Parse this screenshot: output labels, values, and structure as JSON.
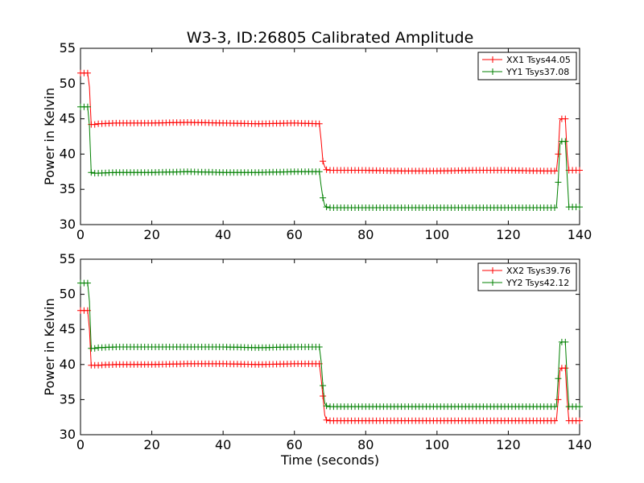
{
  "figure": {
    "title": "W3-3, ID:26805 Calibrated Amplitude"
  },
  "chart_data": [
    {
      "type": "line",
      "xlabel": "",
      "ylabel": "Power in Kelvin",
      "xlim": [
        0,
        140
      ],
      "ylim": [
        30,
        55
      ],
      "xticks": [
        0,
        20,
        40,
        60,
        80,
        100,
        120,
        140
      ],
      "yticks": [
        30,
        35,
        40,
        45,
        50,
        55
      ],
      "grid": false,
      "legend_position": "top-right",
      "series": [
        {
          "name": "XX1 Tsys44.05",
          "color": "#ff0000",
          "marker": "+",
          "x": [
            0,
            1,
            2,
            2.5,
            3,
            4,
            5,
            10,
            20,
            30,
            40,
            50,
            60,
            67,
            67.5,
            68,
            68.5,
            69,
            70,
            80,
            90,
            100,
            110,
            120,
            130,
            133.5,
            134,
            134.5,
            135,
            136,
            136.5,
            137,
            140
          ],
          "y": [
            51.5,
            51.5,
            51.5,
            49.5,
            44.2,
            44.2,
            44.3,
            44.4,
            44.4,
            44.5,
            44.4,
            44.3,
            44.4,
            44.3,
            42,
            39,
            38.2,
            37.8,
            37.7,
            37.7,
            37.6,
            37.6,
            37.7,
            37.7,
            37.6,
            37.6,
            40,
            44.8,
            45,
            45,
            40,
            37.7,
            37.7
          ]
        },
        {
          "name": "YY1 Tsys37.08",
          "color": "#008000",
          "marker": "+",
          "x": [
            0,
            1,
            2,
            2.5,
            3,
            4,
            5,
            10,
            20,
            30,
            40,
            50,
            60,
            67,
            67.5,
            68,
            68.5,
            69,
            70,
            80,
            90,
            100,
            110,
            120,
            130,
            133.5,
            134,
            134.5,
            135,
            136,
            136.5,
            137,
            140
          ],
          "y": [
            46.7,
            46.7,
            46.7,
            44,
            37.4,
            37.3,
            37.3,
            37.4,
            37.4,
            37.5,
            37.4,
            37.4,
            37.5,
            37.5,
            35.5,
            33.8,
            32.7,
            32.5,
            32.4,
            32.4,
            32.4,
            32.4,
            32.4,
            32.4,
            32.4,
            32.4,
            36,
            41.5,
            41.8,
            41.8,
            37,
            32.5,
            32.5
          ]
        }
      ]
    },
    {
      "type": "line",
      "xlabel": "Time (seconds)",
      "ylabel": "Power in Kelvin",
      "xlim": [
        0,
        140
      ],
      "ylim": [
        30,
        55
      ],
      "xticks": [
        0,
        20,
        40,
        60,
        80,
        100,
        120,
        140
      ],
      "yticks": [
        30,
        35,
        40,
        45,
        50,
        55
      ],
      "grid": false,
      "legend_position": "top-right",
      "series": [
        {
          "name": "XX2 Tsys39.76",
          "color": "#ff0000",
          "marker": "+",
          "x": [
            0,
            1,
            2,
            2.5,
            3,
            4,
            5,
            10,
            20,
            30,
            40,
            50,
            60,
            67,
            67.5,
            68,
            68.5,
            69,
            70,
            80,
            90,
            100,
            110,
            120,
            130,
            133.5,
            134,
            134.5,
            135,
            136,
            136.5,
            137,
            140
          ],
          "y": [
            47.7,
            47.7,
            47.7,
            45,
            39.9,
            39.9,
            39.9,
            40.0,
            40.0,
            40.1,
            40.1,
            40.0,
            40.1,
            40.1,
            38,
            35.5,
            32.8,
            32.1,
            32.0,
            32.0,
            32.0,
            32.0,
            32.0,
            32.0,
            32.0,
            32.0,
            35,
            39.2,
            39.5,
            39.5,
            35,
            32.0,
            32.0
          ]
        },
        {
          "name": "YY2 Tsys42.12",
          "color": "#008000",
          "marker": "+",
          "x": [
            0,
            1,
            2,
            2.5,
            3,
            4,
            5,
            10,
            20,
            30,
            40,
            50,
            60,
            67,
            67.5,
            68,
            68.5,
            69,
            70,
            80,
            90,
            100,
            110,
            120,
            130,
            133.5,
            134,
            134.5,
            135,
            136,
            136.5,
            137,
            140
          ],
          "y": [
            51.6,
            51.6,
            51.6,
            49,
            42.3,
            42.3,
            42.4,
            42.5,
            42.5,
            42.5,
            42.5,
            42.4,
            42.5,
            42.5,
            40.5,
            37,
            34.5,
            34.1,
            34.0,
            34.0,
            34.0,
            34.0,
            34.0,
            34.0,
            34.0,
            34.0,
            38,
            43.0,
            43.2,
            43.2,
            38,
            34.0,
            34.0
          ]
        }
      ]
    }
  ]
}
